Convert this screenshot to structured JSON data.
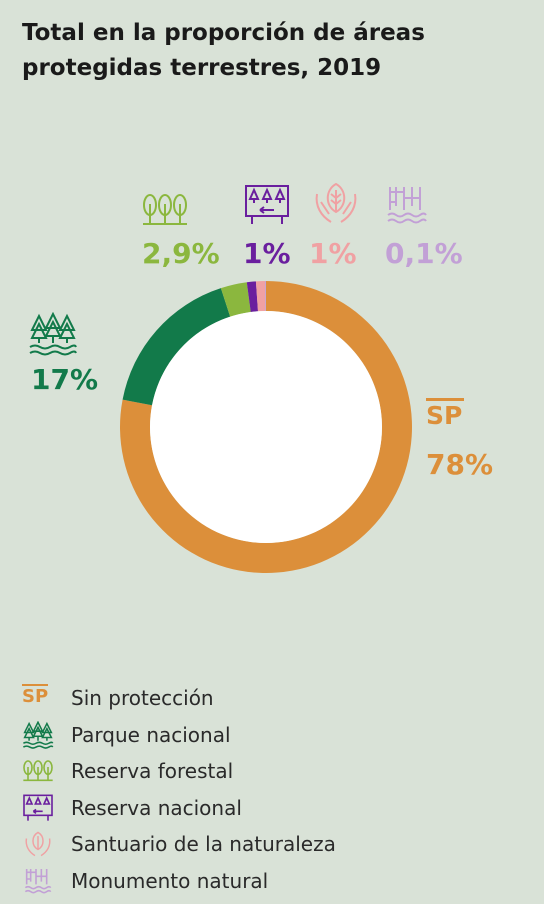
{
  "header": {
    "title_line1": "Total en la proporción de áreas",
    "title_line2": "protegidas terrestres, 2019"
  },
  "chart_data": {
    "type": "pie",
    "donut": true,
    "title": "Total en la proporción de áreas protegidas terrestres, 2019",
    "categories": [
      "Sin protección",
      "Parque nacional",
      "Reserva forestal",
      "Reserva nacional",
      "Santuario de la naturaleza",
      "Monumento natural"
    ],
    "values": [
      78,
      17,
      2.9,
      1,
      1,
      0.1
    ],
    "value_labels": [
      "78%",
      "17%",
      "2,9%",
      "1%",
      "1%",
      "0,1%"
    ],
    "colors": [
      "#dc8f3a",
      "#127a4a",
      "#8bb73e",
      "#6a1f9e",
      "#f0a1a3",
      "#c2a0d6"
    ],
    "legend_position": "bottom-left"
  },
  "sp_badge": "SP",
  "legend": {
    "items": [
      {
        "label": "Sin protección",
        "icon": "sp-badge-icon"
      },
      {
        "label": "Parque nacional",
        "icon": "pine-forest-icon"
      },
      {
        "label": "Reserva forestal",
        "icon": "round-trees-icon"
      },
      {
        "label": "Reserva nacional",
        "icon": "reserve-sign-icon"
      },
      {
        "label": "Santuario de la naturaleza",
        "icon": "hands-leaf-icon"
      },
      {
        "label": "Monumento natural",
        "icon": "waterfall-icon"
      }
    ]
  }
}
